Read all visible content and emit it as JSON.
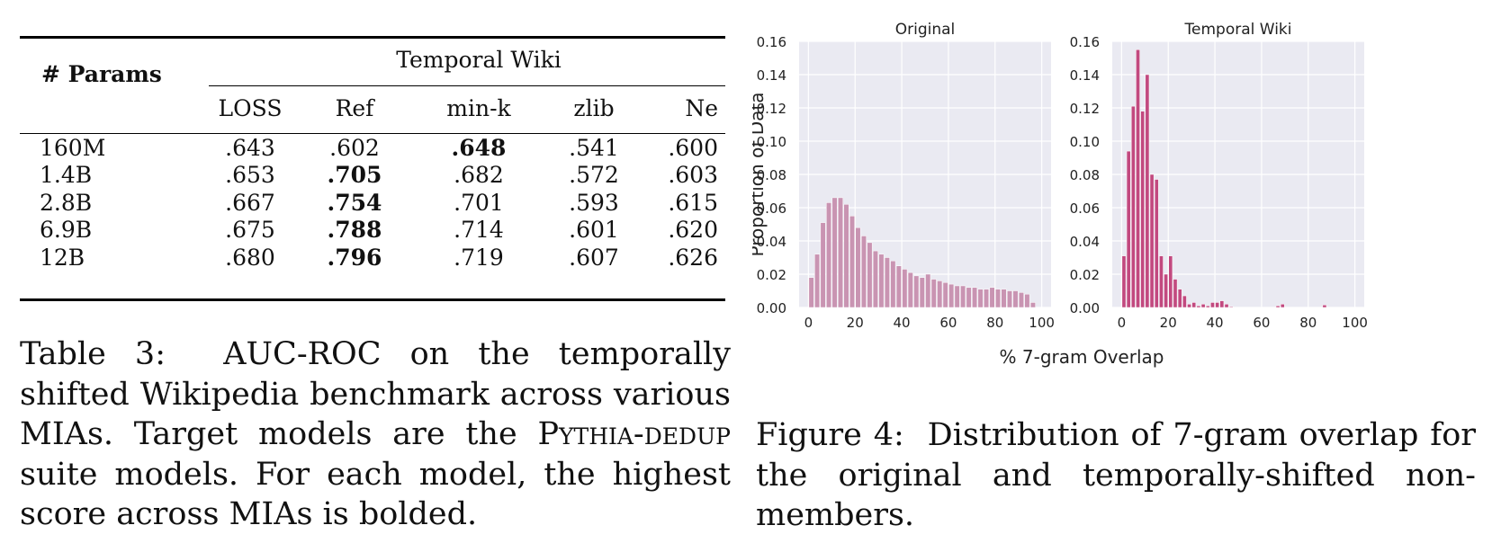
{
  "table": {
    "params_header": "# Params",
    "group_header": "Temporal Wiki",
    "columns": [
      "LOSS",
      "Ref",
      "min-k",
      "zlib",
      "Ne"
    ],
    "rows": [
      {
        "params": "160M",
        "values": [
          ".643",
          ".602",
          ".648",
          ".541",
          ".600"
        ],
        "bold_index": 2
      },
      {
        "params": "1.4B",
        "values": [
          ".653",
          ".705",
          ".682",
          ".572",
          ".603"
        ],
        "bold_index": 1
      },
      {
        "params": "2.8B",
        "values": [
          ".667",
          ".754",
          ".701",
          ".593",
          ".615"
        ],
        "bold_index": 1
      },
      {
        "params": "6.9B",
        "values": [
          ".675",
          ".788",
          ".714",
          ".601",
          ".620"
        ],
        "bold_index": 1
      },
      {
        "params": "12B",
        "values": [
          ".680",
          ".796",
          ".719",
          ".607",
          ".626"
        ],
        "bold_index": 1
      }
    ],
    "caption_prefix": "Table 3:",
    "caption_part1": "AUC-ROC on the temporally shifted Wikipedia benchmark across various MIAs. Target models are the",
    "caption_smallcaps": "Pythia-dedup",
    "caption_part2": "suite models. For each model, the highest score across MIAs is bolded."
  },
  "figure": {
    "caption_prefix": "Figure 4:",
    "caption_text": "Distribution of 7-gram overlap for the original and temporally-shifted non-members."
  },
  "chart_data": [
    {
      "type": "bar",
      "title": "Original",
      "xlabel": "% 7-gram Overlap",
      "ylabel": "Proportion of Data",
      "xlim": [
        -4,
        104
      ],
      "ylim": [
        0,
        0.16
      ],
      "xticks": [
        "0",
        "20",
        "40",
        "60",
        "80",
        "100"
      ],
      "yticks": [
        "0.00",
        "0.02",
        "0.04",
        "0.06",
        "0.08",
        "0.10",
        "0.12",
        "0.14",
        "0.16"
      ],
      "grid": true,
      "color": "#c994b2",
      "bin_width": 2.5,
      "x": [
        0,
        2.5,
        5,
        7.5,
        10,
        12.5,
        15,
        17.5,
        20,
        22.5,
        25,
        27.5,
        30,
        32.5,
        35,
        37.5,
        40,
        42.5,
        45,
        47.5,
        50,
        52.5,
        55,
        57.5,
        60,
        62.5,
        65,
        67.5,
        70,
        72.5,
        75,
        77.5,
        80,
        82.5,
        85,
        87.5,
        90,
        92.5,
        95
      ],
      "values": [
        0.018,
        0.032,
        0.051,
        0.063,
        0.066,
        0.066,
        0.062,
        0.055,
        0.048,
        0.043,
        0.039,
        0.034,
        0.032,
        0.03,
        0.028,
        0.025,
        0.023,
        0.021,
        0.019,
        0.018,
        0.02,
        0.017,
        0.016,
        0.015,
        0.014,
        0.013,
        0.013,
        0.012,
        0.012,
        0.011,
        0.011,
        0.012,
        0.011,
        0.011,
        0.01,
        0.01,
        0.009,
        0.008,
        0.003
      ]
    },
    {
      "type": "bar",
      "title": "Temporal Wiki",
      "xlim": [
        -4,
        104
      ],
      "ylim": [
        0,
        0.16
      ],
      "xticks": [
        "0",
        "20",
        "40",
        "60",
        "80",
        "100"
      ],
      "yticks": [
        "0.00",
        "0.02",
        "0.04",
        "0.06",
        "0.08",
        "0.10",
        "0.12",
        "0.14",
        "0.16"
      ],
      "grid": true,
      "color": "#c2497f",
      "bin_width": 2,
      "x": [
        0,
        2,
        4,
        6,
        8,
        10,
        12,
        14,
        16,
        18,
        20,
        22,
        24,
        26,
        28,
        30,
        32,
        34,
        36,
        38,
        40,
        42,
        44,
        46,
        48,
        50,
        52,
        54,
        56,
        58,
        60,
        62,
        64,
        66,
        68,
        70,
        72,
        74,
        76,
        78,
        80,
        82,
        84,
        86,
        88
      ],
      "values": [
        0.031,
        0.094,
        0.121,
        0.155,
        0.118,
        0.14,
        0.08,
        0.077,
        0.031,
        0.02,
        0.031,
        0.017,
        0.011,
        0.007,
        0.002,
        0.003,
        0.001,
        0.002,
        0.001,
        0.003,
        0.003,
        0.004,
        0.002,
        0.0005,
        0,
        0,
        0,
        0,
        0,
        0,
        0,
        0,
        0,
        0.001,
        0.002,
        0,
        0,
        0,
        0,
        0,
        0,
        0,
        0,
        0.0015,
        0
      ]
    }
  ]
}
